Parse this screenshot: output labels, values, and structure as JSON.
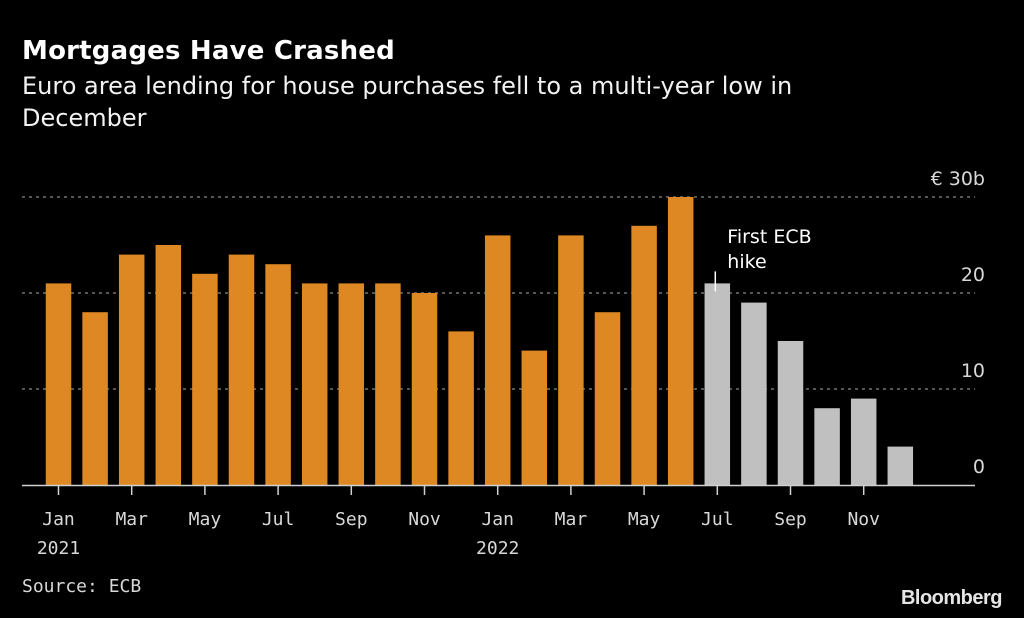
{
  "title": "Mortgages Have Crashed",
  "subtitle": "Euro area lending for house purchases fell to a multi-year low in December",
  "source": "Source: ECB",
  "brand": "Bloomberg",
  "colors": {
    "pre_hike": "#dd8822",
    "post_hike": "#c0c0c0",
    "background": "#000000"
  },
  "chart_data": {
    "type": "bar",
    "title": "Mortgages Have Crashed",
    "subtitle": "Euro area lending for house purchases fell to a multi-year low in December",
    "xlabel": "",
    "ylabel": "",
    "y_unit_label": "€ 30b",
    "ylim": [
      0,
      30
    ],
    "yticks": [
      0,
      10,
      20,
      30
    ],
    "ytick_labels": [
      "0",
      "10",
      "20",
      "€ 30b"
    ],
    "grid": true,
    "categories": [
      "Jan 2021",
      "Feb 2021",
      "Mar 2021",
      "Apr 2021",
      "May 2021",
      "Jun 2021",
      "Jul 2021",
      "Aug 2021",
      "Sep 2021",
      "Oct 2021",
      "Nov 2021",
      "Dec 2021",
      "Jan 2022",
      "Feb 2022",
      "Mar 2022",
      "Apr 2022",
      "May 2022",
      "Jun 2022",
      "Jul 2022",
      "Aug 2022",
      "Sep 2022",
      "Oct 2022",
      "Nov 2022",
      "Dec 2022"
    ],
    "values": [
      21,
      18,
      24,
      25,
      22,
      24,
      23,
      21,
      21,
      21,
      20,
      16,
      26,
      14,
      26,
      18,
      27,
      30,
      21,
      19,
      15,
      8,
      9,
      4
    ],
    "highlight_from_index": 18,
    "xtick_labels": [
      {
        "index": 0,
        "month": "Jan",
        "year": "2021"
      },
      {
        "index": 2,
        "month": "Mar",
        "year": ""
      },
      {
        "index": 4,
        "month": "May",
        "year": ""
      },
      {
        "index": 6,
        "month": "Jul",
        "year": ""
      },
      {
        "index": 8,
        "month": "Sep",
        "year": ""
      },
      {
        "index": 10,
        "month": "Nov",
        "year": ""
      },
      {
        "index": 12,
        "month": "Jan",
        "year": "2022"
      },
      {
        "index": 14,
        "month": "Mar",
        "year": ""
      },
      {
        "index": 16,
        "month": "May",
        "year": ""
      },
      {
        "index": 18,
        "month": "Jul",
        "year": ""
      },
      {
        "index": 20,
        "month": "Sep",
        "year": ""
      },
      {
        "index": 22,
        "month": "Nov",
        "year": ""
      }
    ],
    "annotations": [
      {
        "index": 18,
        "lines": [
          "First ECB",
          "hike"
        ]
      }
    ],
    "legend": "none"
  }
}
